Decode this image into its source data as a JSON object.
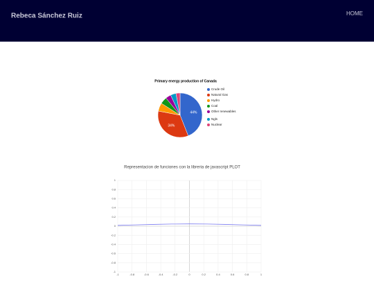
{
  "header": {
    "title": "Rebeca Sánchez Ruiz",
    "nav": [
      "HOME"
    ]
  },
  "chart_data": [
    {
      "type": "pie",
      "title": "Primary energy production of Canada",
      "categories": [
        "Crude Oil",
        "Natural Gas",
        "Hydro",
        "Coal",
        "Other renewables",
        "Ngls",
        "Nuclear"
      ],
      "values": [
        44,
        34,
        6,
        5,
        4,
        4,
        3
      ],
      "value_labels": [
        "44%",
        "34%",
        null,
        null,
        null,
        null,
        null
      ],
      "colors": [
        "#3366cc",
        "#dc3912",
        "#ff9900",
        "#109618",
        "#990099",
        "#0099c6",
        "#dd4477"
      ],
      "legend": "right"
    },
    {
      "type": "line",
      "title": "Representacion de funciones con la libreria de javascript PLOT",
      "x": [
        -1,
        -0.75,
        -0.5,
        -0.25,
        0,
        0.25,
        0.5,
        0.75,
        1
      ],
      "series": [
        {
          "name": null,
          "color": "#7b7bf0",
          "values": [
            0.018,
            0.028,
            0.039,
            0.047,
            0.05,
            0.047,
            0.039,
            0.028,
            0.018
          ]
        }
      ],
      "xlim": [
        -1,
        1
      ],
      "ylim": [
        -1,
        1
      ],
      "xticks": [
        -1,
        -0.8,
        -0.6,
        -0.4,
        -0.2,
        0,
        0.2,
        0.4,
        0.6,
        0.8,
        1
      ],
      "yticks": [
        -1,
        -0.8,
        -0.6,
        -0.4,
        -0.2,
        0,
        0.2,
        0.4,
        0.6,
        0.8,
        1
      ],
      "grid": true
    }
  ]
}
